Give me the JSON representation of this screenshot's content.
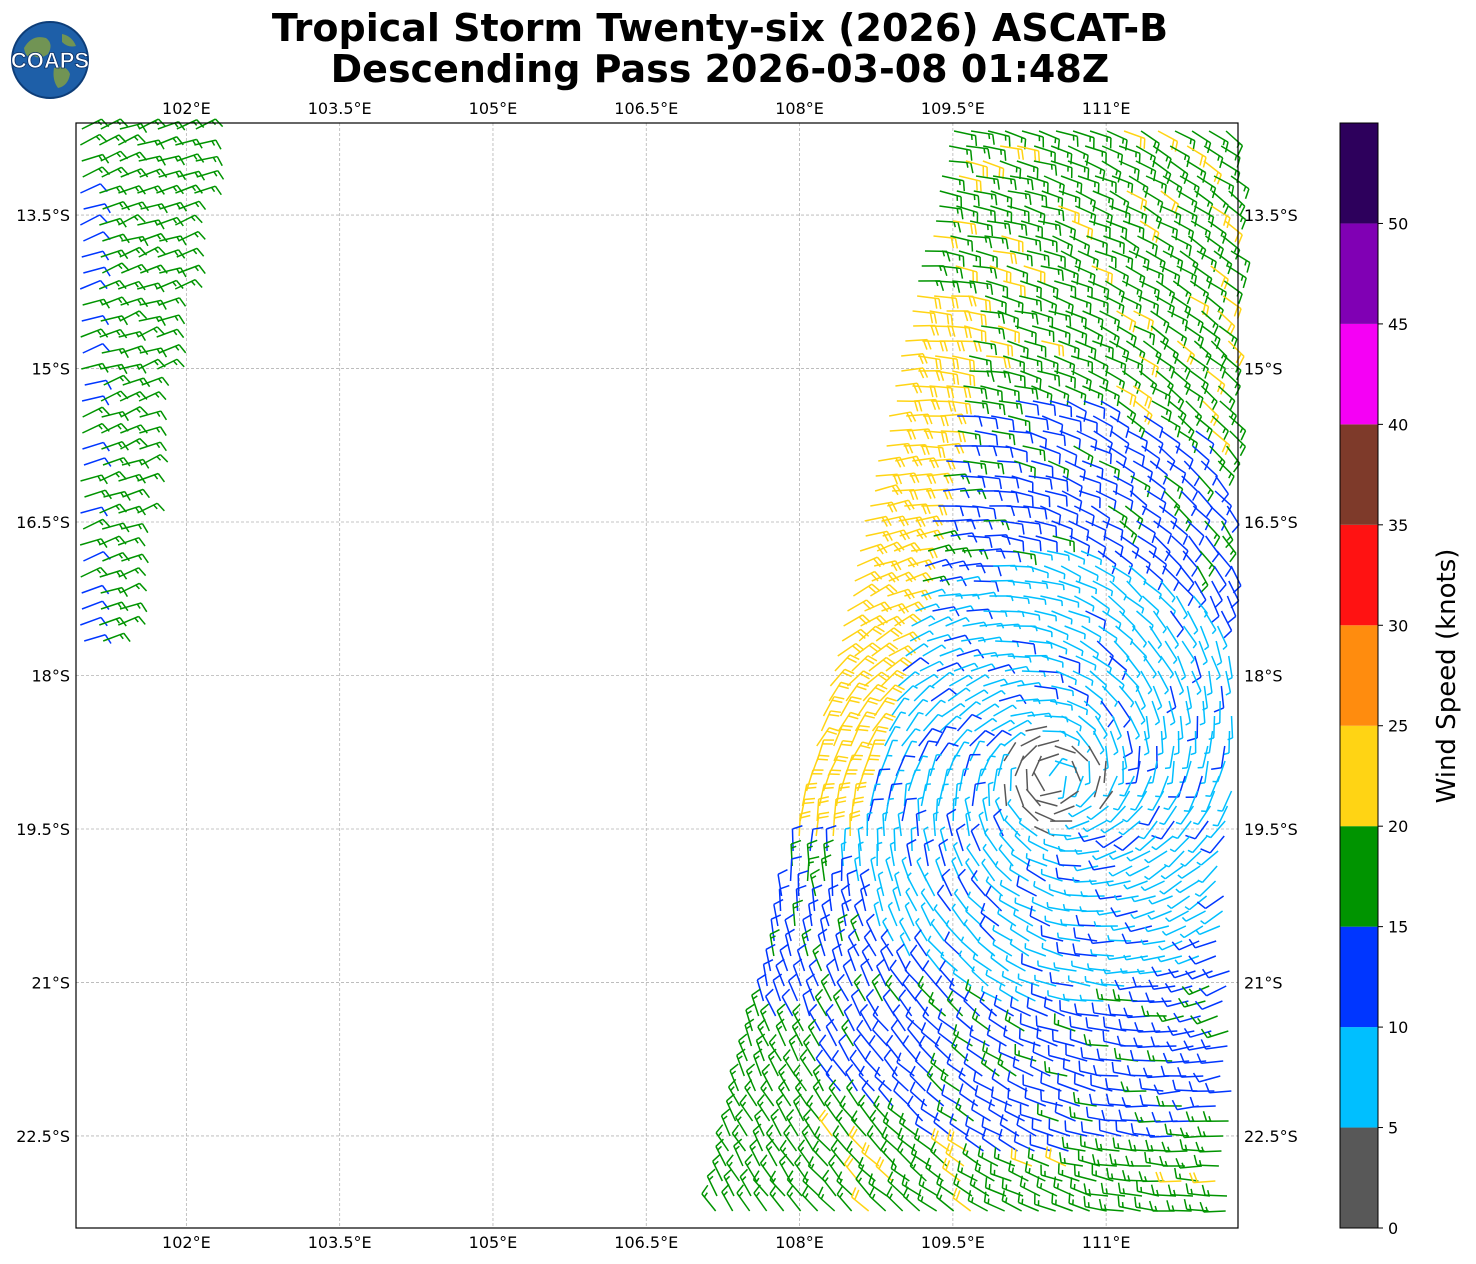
{
  "title": {
    "line1": "Tropical Storm Twenty-six (2026) ASCAT-B",
    "line2": "Descending Pass 2026-03-08 01:48Z"
  },
  "logo": {
    "text": "COAPS",
    "icon": "globe-icon"
  },
  "map": {
    "lon_ticks": [
      "102°E",
      "103.5°E",
      "105°E",
      "106.5°E",
      "108°E",
      "109.5°E",
      "111°E"
    ],
    "lon_values": [
      102,
      103.5,
      105,
      106.5,
      108,
      109.5,
      111
    ],
    "lat_ticks": [
      "13.5°S",
      "15°S",
      "16.5°S",
      "18°S",
      "19.5°S",
      "21°S",
      "22.5°S"
    ],
    "lat_values": [
      13.5,
      15,
      16.5,
      18,
      19.5,
      21,
      22.5
    ],
    "lon_range": [
      100.92,
      112.29
    ],
    "lat_range": [
      12.6,
      23.4
    ],
    "grid": true
  },
  "colorbar": {
    "label": "Wind Speed (knots)",
    "tick_labels": [
      "0",
      "5",
      "10",
      "15",
      "20",
      "25",
      "30",
      "35",
      "40",
      "45",
      "50"
    ],
    "bins": [
      {
        "min": 0,
        "max": 5,
        "color": "#585858"
      },
      {
        "min": 5,
        "max": 10,
        "color": "#00bfff"
      },
      {
        "min": 10,
        "max": 15,
        "color": "#0036ff"
      },
      {
        "min": 15,
        "max": 20,
        "color": "#009400"
      },
      {
        "min": 20,
        "max": 25,
        "color": "#ffd414"
      },
      {
        "min": 25,
        "max": 30,
        "color": "#ff8c0e"
      },
      {
        "min": 30,
        "max": 35,
        "color": "#ff1212"
      },
      {
        "min": 35,
        "max": 40,
        "color": "#7e3a2a"
      },
      {
        "min": 40,
        "max": 45,
        "color": "#f500f5"
      },
      {
        "min": 45,
        "max": 50,
        "color": "#8000b4"
      },
      {
        "min": 50,
        "max": 55,
        "color": "#2d005c"
      }
    ]
  },
  "storm_center": {
    "lon": 110.5,
    "lat": 19.0
  },
  "swaths": [
    {
      "name": "west",
      "lat_range": [
        12.6,
        17.8
      ],
      "lon_west_at_top": 100.92,
      "lon_east_at_top": 102.2,
      "lon_west_at_bottom": 101.0,
      "lon_east_at_bottom": 101.4
    },
    {
      "name": "east",
      "lat_range": [
        12.6,
        23.4
      ],
      "lon_west_at_top": 109.5,
      "lon_west_at_bottom": 107.1,
      "lon_east": 112.29
    }
  ]
}
